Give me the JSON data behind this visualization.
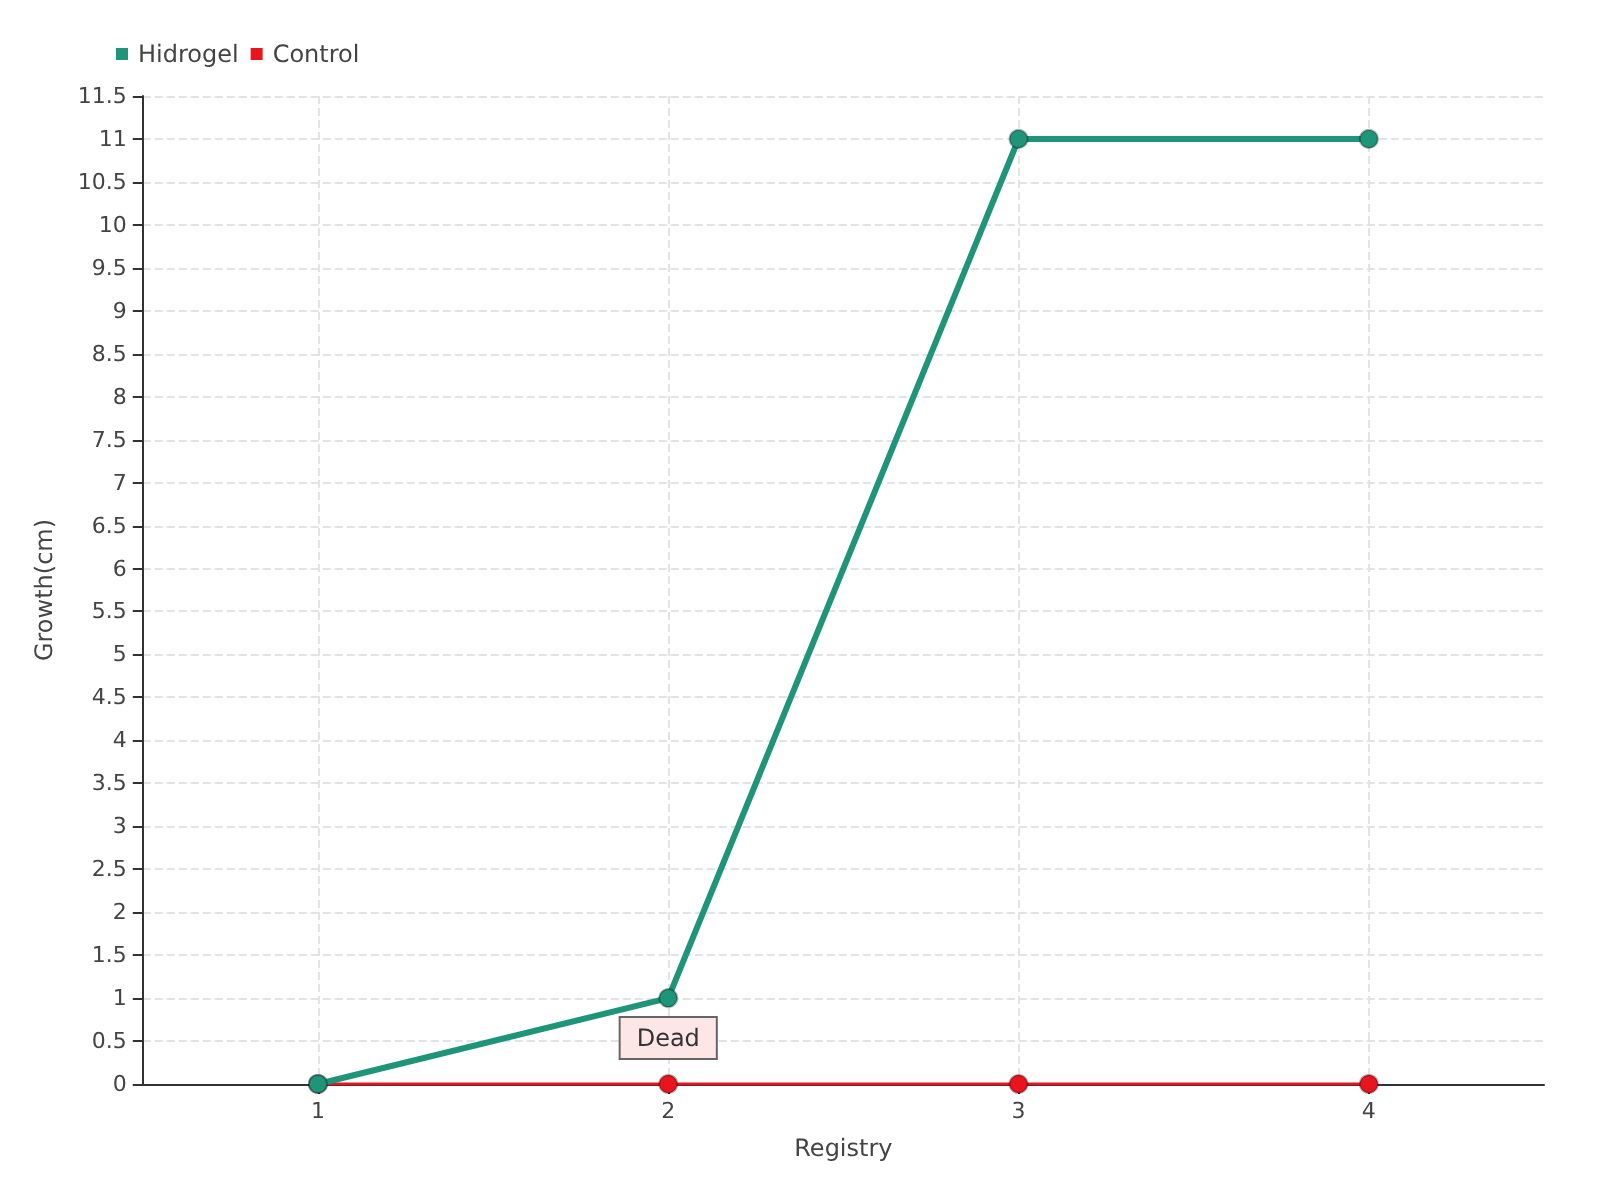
{
  "chart_data": {
    "type": "line",
    "xlabel": "Registry",
    "ylabel": "Growth(cm)",
    "x": [
      1,
      2,
      3,
      4
    ],
    "series": [
      {
        "name": "Hidrogel",
        "color": "#1e9478",
        "values": [
          0,
          1,
          11,
          11
        ]
      },
      {
        "name": "Control",
        "color": "#e8141e",
        "values": [
          0,
          0,
          0,
          0
        ]
      }
    ],
    "xlim": [
      0.5,
      4.5
    ],
    "xticks": [
      1,
      2,
      3,
      4
    ],
    "ylim": [
      0,
      11.5
    ],
    "yticks": [
      0,
      0.5,
      1,
      1.5,
      2,
      2.5,
      3,
      3.5,
      4,
      4.5,
      5,
      5.5,
      6,
      6.5,
      7,
      7.5,
      8,
      8.5,
      9,
      9.5,
      10,
      10.5,
      11,
      11.5
    ],
    "annotations": [
      {
        "text": "Dead",
        "x": 2,
        "y": 0
      }
    ],
    "grid": true,
    "legend": "top left",
    "marker": "circle",
    "line_style": "solid"
  }
}
